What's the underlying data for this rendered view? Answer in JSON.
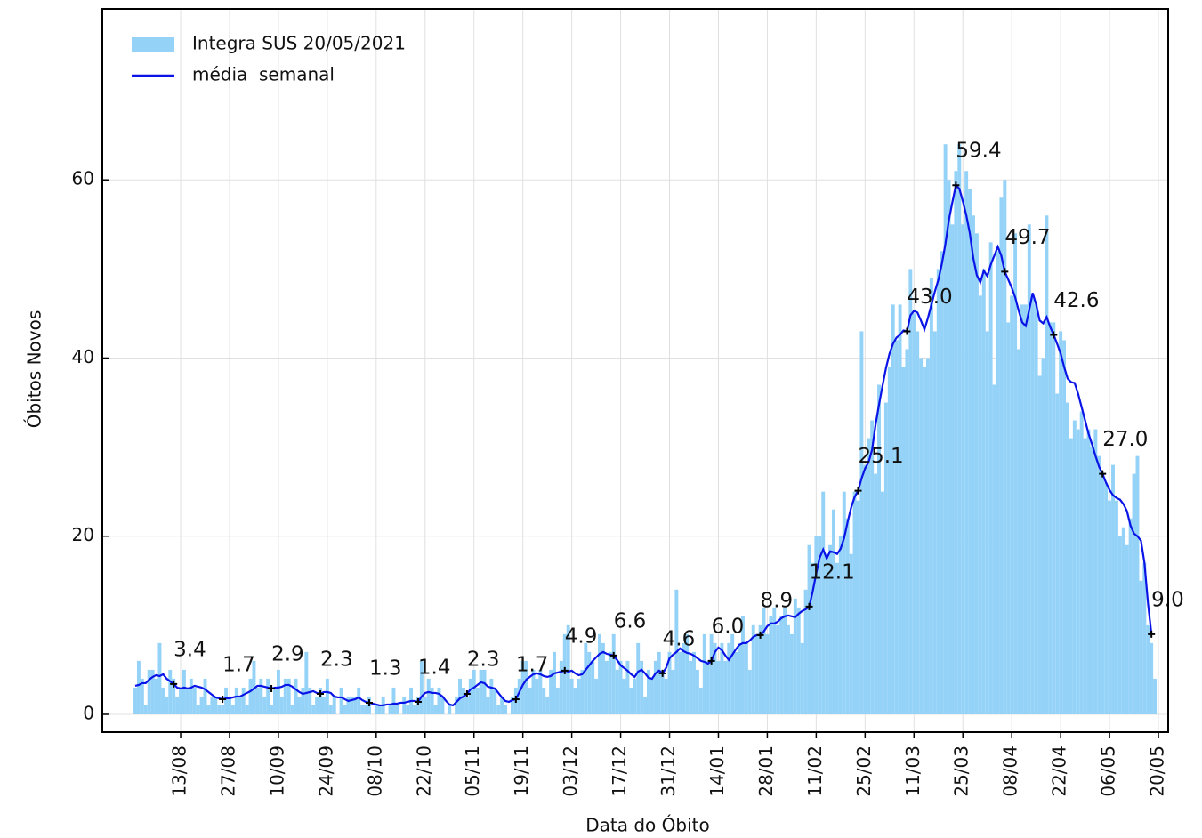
{
  "chart_data": {
    "type": "bar",
    "categories": [
      null,
      null,
      null,
      null,
      null,
      null,
      null,
      null,
      null,
      null,
      null,
      null,
      null,
      "13/08",
      null,
      null,
      null,
      null,
      null,
      null,
      null,
      null,
      null,
      null,
      null,
      null,
      null,
      "27/08",
      null,
      null,
      null,
      null,
      null,
      null,
      null,
      null,
      null,
      null,
      null,
      null,
      null,
      "10/09",
      null,
      null,
      null,
      null,
      null,
      null,
      null,
      null,
      null,
      null,
      null,
      null,
      null,
      "24/09",
      null,
      null,
      null,
      null,
      null,
      null,
      null,
      null,
      null,
      null,
      null,
      null,
      null,
      "08/10",
      null,
      null,
      null,
      null,
      null,
      null,
      null,
      null,
      null,
      null,
      null,
      null,
      null,
      "22/10",
      null,
      null,
      null,
      null,
      null,
      null,
      null,
      null,
      null,
      null,
      null,
      null,
      null,
      "05/11",
      null,
      null,
      null,
      null,
      null,
      null,
      null,
      null,
      null,
      null,
      null,
      null,
      null,
      "19/11",
      null,
      null,
      null,
      null,
      null,
      null,
      null,
      null,
      null,
      null,
      null,
      null,
      null,
      "03/12",
      null,
      null,
      null,
      null,
      null,
      null,
      null,
      null,
      null,
      null,
      null,
      null,
      null,
      "17/12",
      null,
      null,
      null,
      null,
      null,
      null,
      null,
      null,
      null,
      null,
      null,
      null,
      null,
      "31/12",
      null,
      null,
      null,
      null,
      null,
      null,
      null,
      null,
      null,
      null,
      null,
      null,
      null,
      "14/01",
      null,
      null,
      null,
      null,
      null,
      null,
      null,
      null,
      null,
      null,
      null,
      null,
      null,
      "28/01",
      null,
      null,
      null,
      null,
      null,
      null,
      null,
      null,
      null,
      null,
      null,
      null,
      null,
      "11/02",
      null,
      null,
      null,
      null,
      null,
      null,
      null,
      null,
      null,
      null,
      null,
      null,
      null,
      "25/02",
      null,
      null,
      null,
      null,
      null,
      null,
      null,
      null,
      null,
      null,
      null,
      null,
      null,
      "11/03",
      null,
      null,
      null,
      null,
      null,
      null,
      null,
      null,
      null,
      null,
      null,
      null,
      null,
      "25/03",
      null,
      null,
      null,
      null,
      null,
      null,
      null,
      null,
      null,
      null,
      null,
      null,
      null,
      "08/04",
      null,
      null,
      null,
      null,
      null,
      null,
      null,
      null,
      null,
      null,
      null,
      null,
      null,
      "22/04",
      null,
      null,
      null,
      null,
      null,
      null,
      null,
      null,
      null,
      null,
      null,
      null,
      null,
      "06/05",
      null,
      null,
      null,
      null,
      null,
      null,
      null,
      null,
      null,
      null,
      null,
      null,
      null,
      "20/05"
    ],
    "series": [
      {
        "name": "Integra SUS 20/05/2021",
        "type": "bar",
        "color": "#94d2f8",
        "values": [
          3,
          6,
          4,
          1,
          5,
          5,
          4,
          8,
          3,
          2,
          5,
          4,
          2,
          3,
          5,
          3,
          4,
          3,
          1,
          2,
          4,
          1,
          2,
          2,
          1,
          1,
          3,
          2,
          1,
          3,
          2,
          3,
          1,
          4,
          6,
          3,
          4,
          2,
          4,
          1,
          3,
          5,
          2,
          4,
          4,
          1,
          4,
          2,
          3,
          7,
          3,
          1,
          2,
          3,
          2,
          4,
          1,
          2,
          0,
          3,
          1,
          2,
          2,
          2,
          3,
          1,
          1,
          2,
          0,
          1,
          1,
          2,
          0,
          1,
          3,
          1,
          0,
          2,
          1,
          3,
          1,
          2,
          6,
          2,
          4,
          3,
          1,
          3,
          2,
          0,
          1,
          0,
          2,
          4,
          3,
          2,
          4,
          5,
          3,
          5,
          5,
          2,
          4,
          3,
          1,
          2,
          1,
          0,
          2,
          3,
          4,
          6,
          6,
          3,
          5,
          4,
          5,
          3,
          2,
          5,
          7,
          3,
          6,
          9,
          10,
          4,
          3,
          4,
          5,
          8,
          7,
          6,
          4,
          9,
          8,
          6,
          7,
          9,
          5,
          6,
          4,
          6,
          3,
          4,
          8,
          6,
          2,
          5,
          4,
          6,
          7,
          5,
          4,
          7,
          5,
          14,
          7,
          8,
          9,
          6,
          7,
          5,
          3,
          9,
          6,
          9,
          8,
          6,
          8,
          6,
          8,
          9,
          7,
          8,
          11,
          8,
          5,
          10,
          9,
          10,
          12,
          9,
          11,
          12,
          10,
          11,
          12,
          10,
          9,
          13,
          12,
          8,
          14,
          19,
          17,
          20,
          20,
          25,
          18,
          19,
          23,
          17,
          20,
          25,
          22,
          18,
          25,
          24,
          43,
          28,
          31,
          33,
          27,
          37,
          25,
          35,
          39,
          46,
          42,
          46,
          39,
          41,
          50,
          45,
          43,
          40,
          39,
          40,
          49,
          43,
          50,
          52,
          64,
          60,
          55,
          61,
          64,
          55,
          61,
          59,
          56,
          54,
          47,
          50,
          43,
          53,
          37,
          52,
          58,
          60,
          44,
          47,
          54,
          41,
          46,
          46,
          55,
          47,
          46,
          38,
          40,
          56,
          44,
          44,
          36,
          43,
          42,
          35,
          31,
          33,
          32,
          34,
          31,
          32,
          30,
          32,
          29,
          27,
          26,
          24,
          28,
          24,
          20,
          21,
          19,
          22,
          27,
          29,
          15,
          17,
          10,
          8,
          4,
          null
        ]
      },
      {
        "name": "média  semanal",
        "type": "line",
        "color": "#0a14e6",
        "values": [
          3.2,
          3.3,
          3.5,
          3.5,
          3.9,
          4.2,
          4.4,
          4.3,
          4.5,
          4.0,
          3.7,
          3.4,
          3.0,
          2.9,
          3.0,
          2.9,
          3.0,
          3.2,
          3.1,
          3.0,
          2.8,
          2.5,
          2.2,
          1.9,
          1.8,
          1.7,
          1.8,
          1.8,
          1.9,
          2.0,
          2.0,
          2.2,
          2.4,
          2.6,
          2.9,
          3.2,
          3.2,
          3.1,
          3.0,
          2.9,
          3.0,
          3.0,
          3.1,
          3.3,
          3.3,
          3.1,
          2.8,
          2.5,
          2.3,
          2.4,
          2.5,
          2.6,
          2.4,
          2.3,
          2.5,
          2.5,
          2.4,
          2.0,
          1.9,
          1.9,
          1.7,
          1.5,
          1.6,
          1.7,
          1.9,
          1.6,
          1.4,
          1.3,
          1.2,
          1.1,
          1.0,
          1.0,
          1.1,
          1.1,
          1.2,
          1.2,
          1.3,
          1.3,
          1.4,
          1.5,
          1.5,
          1.4,
          2.0,
          2.4,
          2.5,
          2.4,
          2.4,
          2.3,
          2.0,
          1.5,
          1.1,
          1.0,
          1.4,
          1.8,
          2.0,
          2.3,
          2.8,
          3.0,
          3.3,
          3.6,
          3.5,
          3.1,
          3.0,
          2.9,
          2.4,
          1.9,
          1.5,
          1.4,
          1.6,
          1.7,
          2.5,
          3.3,
          3.9,
          4.2,
          4.5,
          4.6,
          4.5,
          4.3,
          4.2,
          4.3,
          4.6,
          4.7,
          4.8,
          4.9,
          4.8,
          4.9,
          4.6,
          4.4,
          4.5,
          5.0,
          5.5,
          6.0,
          6.4,
          6.8,
          7.0,
          6.8,
          6.7,
          6.6,
          6.1,
          5.5,
          5.2,
          4.9,
          4.5,
          4.2,
          4.8,
          5.0,
          4.6,
          4.1,
          4.0,
          4.6,
          4.9,
          4.6,
          5.2,
          6.3,
          6.7,
          7.0,
          7.4,
          7.1,
          6.9,
          6.8,
          6.6,
          6.3,
          6.0,
          5.9,
          5.7,
          6.0,
          7.0,
          7.5,
          7.2,
          6.6,
          6.1,
          6.7,
          7.3,
          7.8,
          8.0,
          8.0,
          8.3,
          8.7,
          8.9,
          8.9,
          9.3,
          9.9,
          10.2,
          10.2,
          10.4,
          10.8,
          11.0,
          11.1,
          11.0,
          10.9,
          11.3,
          11.6,
          11.8,
          12.1,
          13.8,
          15.8,
          17.6,
          18.5,
          17.5,
          18.3,
          18.2,
          18.0,
          18.6,
          19.8,
          21.6,
          23.2,
          24.4,
          25.1,
          26.5,
          27.6,
          28.3,
          29.7,
          32.5,
          34.8,
          36.9,
          38.9,
          40.5,
          41.6,
          42.3,
          42.6,
          43.1,
          43.0,
          44.8,
          45.3,
          45.1,
          44.2,
          43.2,
          44.5,
          46.0,
          47.5,
          48.8,
          50.6,
          52.8,
          55.5,
          57.5,
          59.4,
          59.0,
          57.6,
          56.0,
          54.0,
          51.2,
          49.3,
          48.5,
          49.8,
          49.2,
          50.5,
          51.5,
          52.5,
          51.5,
          49.7,
          48.8,
          47.9,
          46.8,
          45.3,
          44.0,
          43.6,
          45.4,
          47.3,
          46.0,
          44.2,
          43.9,
          44.6,
          43.5,
          42.6,
          41.6,
          40.5,
          39.0,
          37.7,
          37.3,
          37.2,
          36.0,
          34.5,
          33.0,
          31.5,
          30.3,
          29.0,
          27.8,
          27.0,
          26.0,
          25.2,
          24.6,
          24.3,
          24.1,
          23.6,
          22.8,
          21.2,
          20.3,
          20.0,
          19.5,
          17.0,
          12.5,
          9.0,
          null,
          null
        ],
        "value_labels": [
          null,
          null,
          null,
          null,
          null,
          null,
          null,
          null,
          null,
          null,
          null,
          "3.4",
          null,
          null,
          null,
          null,
          null,
          null,
          null,
          null,
          null,
          null,
          null,
          null,
          null,
          "1.7",
          null,
          null,
          null,
          null,
          null,
          null,
          null,
          null,
          null,
          null,
          null,
          null,
          null,
          "2.9",
          null,
          null,
          null,
          null,
          null,
          null,
          null,
          null,
          null,
          null,
          null,
          null,
          null,
          "2.3",
          null,
          null,
          null,
          null,
          null,
          null,
          null,
          null,
          null,
          null,
          null,
          null,
          null,
          "1.3",
          null,
          null,
          null,
          null,
          null,
          null,
          null,
          null,
          null,
          null,
          null,
          null,
          null,
          "1.4",
          null,
          null,
          null,
          null,
          null,
          null,
          null,
          null,
          null,
          null,
          null,
          null,
          null,
          "2.3",
          null,
          null,
          null,
          null,
          null,
          null,
          null,
          null,
          null,
          null,
          null,
          null,
          null,
          "1.7",
          null,
          null,
          null,
          null,
          null,
          null,
          null,
          null,
          null,
          null,
          null,
          null,
          null,
          "4.9",
          null,
          null,
          null,
          null,
          null,
          null,
          null,
          null,
          null,
          null,
          null,
          null,
          null,
          "6.6",
          null,
          null,
          null,
          null,
          null,
          null,
          null,
          null,
          null,
          null,
          null,
          null,
          null,
          "4.6",
          null,
          null,
          null,
          null,
          null,
          null,
          null,
          null,
          null,
          null,
          null,
          null,
          null,
          "6.0",
          null,
          null,
          null,
          null,
          null,
          null,
          null,
          null,
          null,
          null,
          null,
          null,
          null,
          "8.9",
          null,
          null,
          null,
          null,
          null,
          null,
          null,
          null,
          null,
          null,
          null,
          null,
          null,
          "12.1",
          null,
          null,
          null,
          null,
          null,
          null,
          null,
          null,
          null,
          null,
          null,
          null,
          null,
          "25.1",
          null,
          null,
          null,
          null,
          null,
          null,
          null,
          null,
          null,
          null,
          null,
          null,
          null,
          "43.0",
          null,
          null,
          null,
          null,
          null,
          null,
          null,
          null,
          null,
          null,
          null,
          null,
          null,
          "59.4",
          null,
          null,
          null,
          null,
          null,
          null,
          null,
          null,
          null,
          null,
          null,
          null,
          null,
          "49.7",
          null,
          null,
          null,
          null,
          null,
          null,
          null,
          null,
          null,
          null,
          null,
          null,
          null,
          "42.6",
          null,
          null,
          null,
          null,
          null,
          null,
          null,
          null,
          null,
          null,
          null,
          null,
          null,
          "27.0",
          null,
          null,
          null,
          null,
          null,
          null,
          null,
          null,
          null,
          null,
          null,
          null,
          null,
          "9.0",
          null,
          null
        ]
      }
    ],
    "ylim": [
      -2,
      79.2
    ],
    "yticks": [
      0,
      20,
      40,
      60
    ],
    "ylabel": "Óbitos Novos",
    "xlabel": "Data do Óbito",
    "grid": true,
    "legend": "upper left"
  }
}
